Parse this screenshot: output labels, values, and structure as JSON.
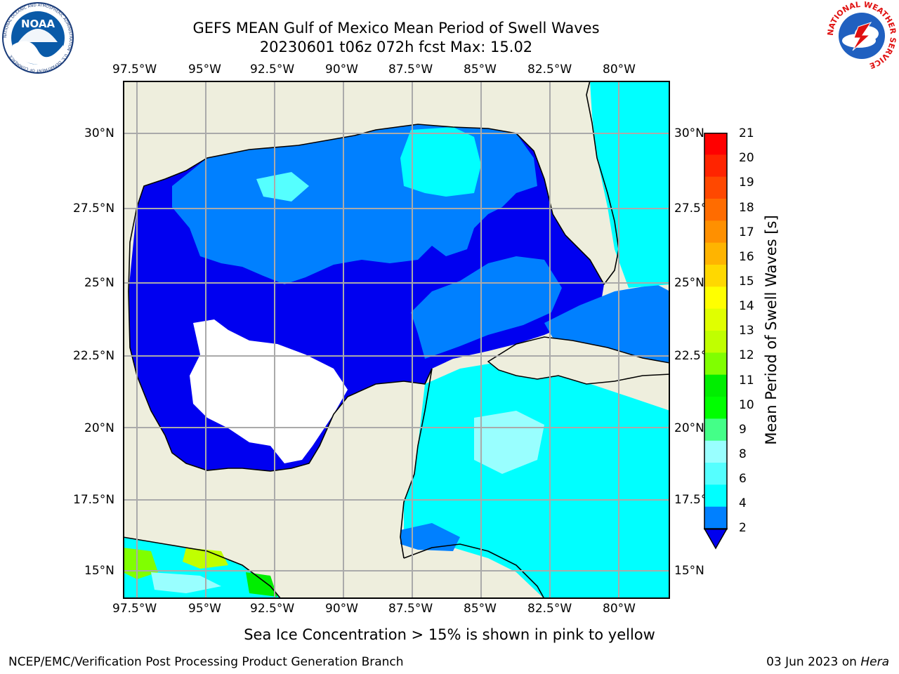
{
  "header": {
    "title": "GEFS MEAN Gulf of Mexico Mean Period of Swell Waves",
    "subtitle": "20230601 t06z 072h fcst   Max: 15.02"
  },
  "logos": {
    "left": {
      "name": "noaa-logo",
      "text": "NOAA",
      "ring_text": "NATIONAL OCEANIC AND ATMOSPHERIC ADMINISTRATION · U.S. DEPARTMENT OF COMMERCE"
    },
    "right": {
      "name": "nws-logo",
      "ring_text": "NATIONAL WEATHER SERVICE"
    }
  },
  "map": {
    "lon_ticks": [
      "97.5°W",
      "95°W",
      "92.5°W",
      "90°W",
      "87.5°W",
      "85°W",
      "82.5°W",
      "80°W"
    ],
    "lat_ticks_left": [
      "30°N",
      "27.5°N",
      "25°N",
      "22.5°N",
      "20°N",
      "17.5°N",
      "15°N"
    ],
    "lat_ticks_right": [
      "30°N",
      "27.5°",
      "25°N",
      "22.5°",
      "20°N",
      "17.5°",
      "15°N"
    ],
    "lon_range": [
      -98,
      -78.2
    ],
    "lat_range": [
      14,
      31.8
    ],
    "grid": true,
    "colors": {
      "land": "#eeeedd",
      "ocean_low": "#0000f0",
      "ocean_mid": "#0080ff",
      "ocean_high": "#00ffff",
      "grid": "#aaaaaa"
    }
  },
  "colorbar": {
    "title": "Mean Period of Swell Waves [s]",
    "ticks": [
      "21",
      "20",
      "19",
      "18",
      "17",
      "16",
      "15",
      "14",
      "13",
      "12",
      "11",
      "10",
      "9",
      "8",
      "6",
      "4",
      "2"
    ],
    "colors": [
      "#ff0000",
      "#ff2400",
      "#ff4800",
      "#ff6c00",
      "#ff9000",
      "#ffb400",
      "#ffd800",
      "#ffff00",
      "#e0ff00",
      "#c0ff00",
      "#80ff00",
      "#00ee00",
      "#00ff00",
      "#44ff88",
      "#99ffff",
      "#55ffff",
      "#00ffff",
      "#0080ff",
      "#0000ee"
    ],
    "extend": "min"
  },
  "footer": {
    "note": "Sea Ice Concentration > 15% is shown in pink to yellow",
    "org": "NCEP/EMC/Verification Post Processing Product Generation Branch",
    "date": "03 Jun 2023 on ",
    "host": "Hera"
  }
}
